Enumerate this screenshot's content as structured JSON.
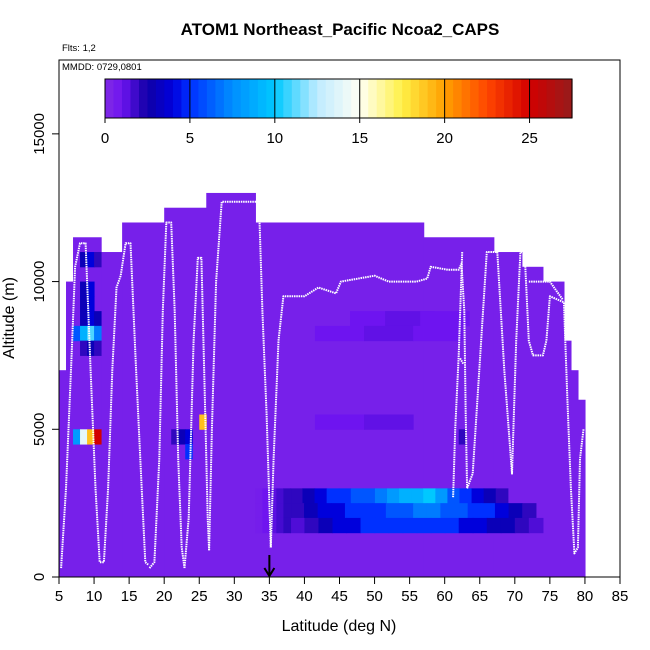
{
  "chart_data": {
    "type": "heatmap",
    "title": "ATOM1 Northeast_Pacific Ncoa2_CAPS",
    "flights_label": "Flts: 1,2",
    "dates_label": "MMDD: 0729,0801",
    "xlabel": "Latitude (deg N)",
    "ylabel": "Altitude (m)",
    "xlim": [
      5,
      85
    ],
    "ylim": [
      0,
      17500
    ],
    "xticks": [
      "5",
      "10",
      "15",
      "20",
      "25",
      "30",
      "35",
      "40",
      "45",
      "50",
      "55",
      "60",
      "65",
      "70",
      "75",
      "80",
      "85"
    ],
    "yticks": [
      "0",
      "5000",
      "10000",
      "15000"
    ],
    "colorbar": {
      "ticks": [
        "0",
        "5",
        "10",
        "15",
        "20",
        "25"
      ],
      "range": [
        0,
        27.5
      ]
    },
    "marker_latitude": 35,
    "background_value": 0.5,
    "coverage_columns": [
      {
        "x0": 5.0,
        "x1": 6.0,
        "top": 7000
      },
      {
        "x0": 6.0,
        "x1": 7.0,
        "top": 10000
      },
      {
        "x0": 7.0,
        "x1": 11.0,
        "top": 11500
      },
      {
        "x0": 11.0,
        "x1": 14.0,
        "top": 11000
      },
      {
        "x0": 14.0,
        "x1": 20.0,
        "top": 12000
      },
      {
        "x0": 20.0,
        "x1": 26.0,
        "top": 12500
      },
      {
        "x0": 26.0,
        "x1": 33.0,
        "top": 13000
      },
      {
        "x0": 33.0,
        "x1": 57.0,
        "top": 12000
      },
      {
        "x0": 57.0,
        "x1": 67.0,
        "top": 11500
      },
      {
        "x0": 67.0,
        "x1": 71.0,
        "top": 11000
      },
      {
        "x0": 71.0,
        "x1": 74.0,
        "top": 10500
      },
      {
        "x0": 74.0,
        "x1": 77.0,
        "top": 10000
      },
      {
        "x0": 77.0,
        "x1": 78.0,
        "top": 8000
      },
      {
        "x0": 78.0,
        "x1": 79.0,
        "top": 7000
      },
      {
        "x0": 79.0,
        "x1": 80.0,
        "top": 6000
      }
    ],
    "cells": [
      {
        "x": 8.5,
        "y": 10750,
        "v": 3
      },
      {
        "x": 9.5,
        "y": 10750,
        "v": 4
      },
      {
        "x": 10.5,
        "y": 10750,
        "v": 2
      },
      {
        "x": 8.5,
        "y": 9750,
        "v": 3
      },
      {
        "x": 9.5,
        "y": 9750,
        "v": 4
      },
      {
        "x": 8.5,
        "y": 9250,
        "v": 3
      },
      {
        "x": 9.5,
        "y": 9250,
        "v": 4
      },
      {
        "x": 8.5,
        "y": 8750,
        "v": 3
      },
      {
        "x": 9.5,
        "y": 8750,
        "v": 4
      },
      {
        "x": 10.5,
        "y": 8750,
        "v": 3
      },
      {
        "x": 7.5,
        "y": 8250,
        "v": 6
      },
      {
        "x": 8.5,
        "y": 8250,
        "v": 9
      },
      {
        "x": 9.5,
        "y": 8250,
        "v": 11
      },
      {
        "x": 10.5,
        "y": 8250,
        "v": 7
      },
      {
        "x": 8.5,
        "y": 7750,
        "v": 2
      },
      {
        "x": 9.5,
        "y": 7750,
        "v": 3
      },
      {
        "x": 10.5,
        "y": 7750,
        "v": 2
      },
      {
        "x": 7.5,
        "y": 4750,
        "v": 8
      },
      {
        "x": 8.5,
        "y": 4750,
        "v": 14
      },
      {
        "x": 9.5,
        "y": 4750,
        "v": 19
      },
      {
        "x": 10.5,
        "y": 4750,
        "v": 25
      },
      {
        "x": 21.5,
        "y": 4750,
        "v": 2
      },
      {
        "x": 22.5,
        "y": 4750,
        "v": 3
      },
      {
        "x": 23.5,
        "y": 4750,
        "v": 4
      },
      {
        "x": 23.5,
        "y": 4250,
        "v": 5
      },
      {
        "x": 25.5,
        "y": 5250,
        "v": 19
      },
      {
        "x": 62.5,
        "y": 4750,
        "v": 2
      },
      {
        "x": 50.0,
        "y": 8750,
        "v": 1
      },
      {
        "x": 55.0,
        "y": 8750,
        "v": 1.2
      },
      {
        "x": 60.0,
        "y": 8750,
        "v": 1
      },
      {
        "x": 45.0,
        "y": 8250,
        "v": 1
      },
      {
        "x": 52.0,
        "y": 8250,
        "v": 1.2
      },
      {
        "x": 59.0,
        "y": 8250,
        "v": 1
      },
      {
        "x": 45.0,
        "y": 5250,
        "v": 1
      },
      {
        "x": 52.0,
        "y": 5250,
        "v": 1.2
      }
    ],
    "band_rows": [
      {
        "y0": 2500,
        "y1": 3000,
        "x0": 38,
        "x1": 69,
        "v": [
          2,
          3,
          4,
          5,
          5,
          6,
          6,
          7,
          8,
          9,
          9,
          10,
          8,
          6,
          5,
          4,
          3,
          2
        ]
      },
      {
        "y0": 2000,
        "y1": 2500,
        "x0": 38,
        "x1": 73,
        "v": [
          2,
          3,
          4,
          4,
          5,
          5,
          5,
          6,
          6,
          7,
          7,
          6,
          6,
          5,
          5,
          4,
          3,
          2
        ]
      },
      {
        "y0": 1500,
        "y1": 2000,
        "x0": 38,
        "x1": 74,
        "v": [
          1.5,
          2,
          3,
          4,
          4,
          5,
          5,
          5,
          5,
          5,
          5,
          5,
          4,
          4,
          3,
          3,
          2,
          1.5
        ]
      }
    ],
    "band_fade_left": {
      "x0": 33,
      "x1": 38
    },
    "flight_track_segments": [
      [
        [
          5.3,
          300
        ],
        [
          6.0,
          3000
        ],
        [
          6.8,
          7500
        ],
        [
          7.3,
          10500
        ],
        [
          8.0,
          11300
        ],
        [
          8.8,
          11300
        ],
        [
          9.5,
          7000
        ],
        [
          10.2,
          3000
        ],
        [
          10.8,
          500
        ],
        [
          11.4,
          500
        ],
        [
          12.0,
          3000
        ],
        [
          12.6,
          7000
        ],
        [
          13.2,
          9800
        ],
        [
          13.8,
          10200
        ],
        [
          14.5,
          11300
        ],
        [
          15.2,
          11300
        ],
        [
          16.0,
          7000
        ],
        [
          16.8,
          3000
        ],
        [
          17.3,
          500
        ],
        [
          17.8,
          400
        ]
      ],
      [
        [
          17.9,
          300
        ],
        [
          18.6,
          500
        ],
        [
          19.3,
          4000
        ],
        [
          19.8,
          9000
        ],
        [
          20.3,
          12000
        ],
        [
          21.0,
          12000
        ],
        [
          21.5,
          9000
        ],
        [
          22.0,
          4000
        ],
        [
          22.5,
          1000
        ],
        [
          22.9,
          300
        ]
      ],
      [
        [
          22.9,
          300
        ],
        [
          23.5,
          2000
        ],
        [
          24.2,
          8000
        ],
        [
          24.8,
          10800
        ],
        [
          25.3,
          10800
        ],
        [
          25.8,
          6000
        ],
        [
          26.2,
          2000
        ],
        [
          26.4,
          900
        ]
      ],
      [
        [
          26.4,
          900
        ],
        [
          26.8,
          5000
        ],
        [
          27.4,
          10000
        ],
        [
          28.2,
          12700
        ],
        [
          33.5,
          12700
        ],
        [
          34.0,
          9000
        ],
        [
          34.6,
          5500
        ],
        [
          35.0,
          2500
        ],
        [
          35.2,
          1000
        ]
      ],
      [
        [
          35.2,
          1000
        ],
        [
          35.6,
          4000
        ],
        [
          36.3,
          8000
        ],
        [
          37.0,
          9500
        ],
        [
          40.0,
          9500
        ],
        [
          42.0,
          9800
        ],
        [
          44.5,
          9600
        ],
        [
          45.2,
          10000
        ],
        [
          50.0,
          10200
        ],
        [
          52.0,
          10000
        ],
        [
          56.0,
          10000
        ],
        [
          57.5,
          10100
        ],
        [
          58.0,
          10500
        ],
        [
          60.5,
          10400
        ],
        [
          62.0,
          10400
        ],
        [
          62.4,
          10600
        ],
        [
          62.8,
          9000
        ],
        [
          63.0,
          5500
        ],
        [
          63.2,
          3000
        ],
        [
          64.0,
          3500
        ],
        [
          66.0,
          11000
        ],
        [
          67.5,
          11000
        ],
        [
          68.5,
          7000
        ],
        [
          69.6,
          3500
        ],
        [
          70.2,
          8000
        ],
        [
          70.8,
          11000
        ],
        [
          71.4,
          11000
        ],
        [
          72.0,
          8000
        ],
        [
          72.6,
          7500
        ],
        [
          74.0,
          7500
        ],
        [
          74.5,
          8000
        ],
        [
          75.0,
          9500
        ],
        [
          77.0,
          9300
        ],
        [
          77.5,
          6000
        ],
        [
          78.0,
          3000
        ],
        [
          78.5,
          800
        ],
        [
          79.0,
          1000
        ],
        [
          79.3,
          4000
        ],
        [
          79.8,
          5000
        ]
      ],
      [
        [
          61.2,
          2700
        ],
        [
          61.5,
          5000
        ],
        [
          62.0,
          7500
        ],
        [
          62.5,
          11000
        ]
      ],
      [
        [
          62.2,
          7400
        ],
        [
          62.7,
          7200
        ]
      ],
      [
        [
          72.0,
          10000
        ],
        [
          75.0,
          10000
        ],
        [
          76.8,
          9400
        ]
      ]
    ]
  }
}
